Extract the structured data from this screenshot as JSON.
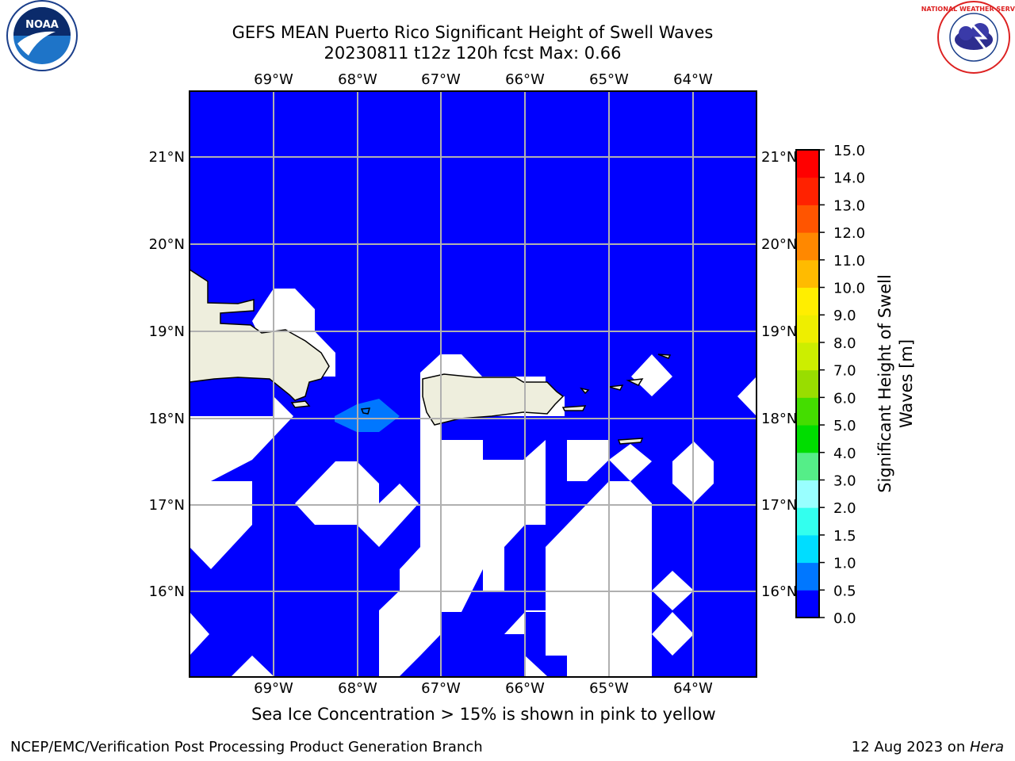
{
  "header": {
    "title_line1": "GEFS MEAN Puerto Rico Significant Height of Swell Waves",
    "title_line2": "20230811 t12z 120h fcst   Max: 0.66",
    "left_logo_text": "NOAA",
    "right_logo_text": "NATIONAL WEATHER SERVICE"
  },
  "map": {
    "lon_labels": [
      "69°W",
      "68°W",
      "67°W",
      "66°W",
      "65°W",
      "64°W"
    ],
    "lat_labels": [
      "21°N",
      "20°N",
      "19°N",
      "18°N",
      "17°N",
      "16°N"
    ],
    "lon_range": [
      -70.0,
      -63.25
    ],
    "lat_range": [
      15.0,
      21.75
    ],
    "land_color": "#eeeedd",
    "background_color": "#0000ff",
    "missing_color": "#ffffff"
  },
  "colorbar": {
    "label": "Significant Height of Swell Waves [m]",
    "label_line1": "Significant Height of Swell",
    "label_line2": "Waves [m]",
    "ticks": [
      "0.0",
      "0.5",
      "1.0",
      "1.5",
      "2.0",
      "3.0",
      "4.0",
      "5.0",
      "6.0",
      "7.0",
      "8.0",
      "9.0",
      "10.0",
      "11.0",
      "12.0",
      "13.0",
      "14.0",
      "15.0"
    ],
    "colors": [
      "#0000ff",
      "#0077ff",
      "#00ddff",
      "#33ffee",
      "#99ffff",
      "#55ee88",
      "#00dd00",
      "#44dd00",
      "#99dd00",
      "#ccee00",
      "#eeee00",
      "#ffee00",
      "#ffbb00",
      "#ff8800",
      "#ff5500",
      "#ff2200",
      "#ff0000"
    ]
  },
  "notes": {
    "sea_ice": "Sea Ice Concentration > 15% is shown in pink to yellow"
  },
  "footer": {
    "left": "NCEP/EMC/Verification Post Processing Product Generation Branch",
    "right_prefix": "12 Aug 2023 on ",
    "right_machine": "Hera"
  }
}
